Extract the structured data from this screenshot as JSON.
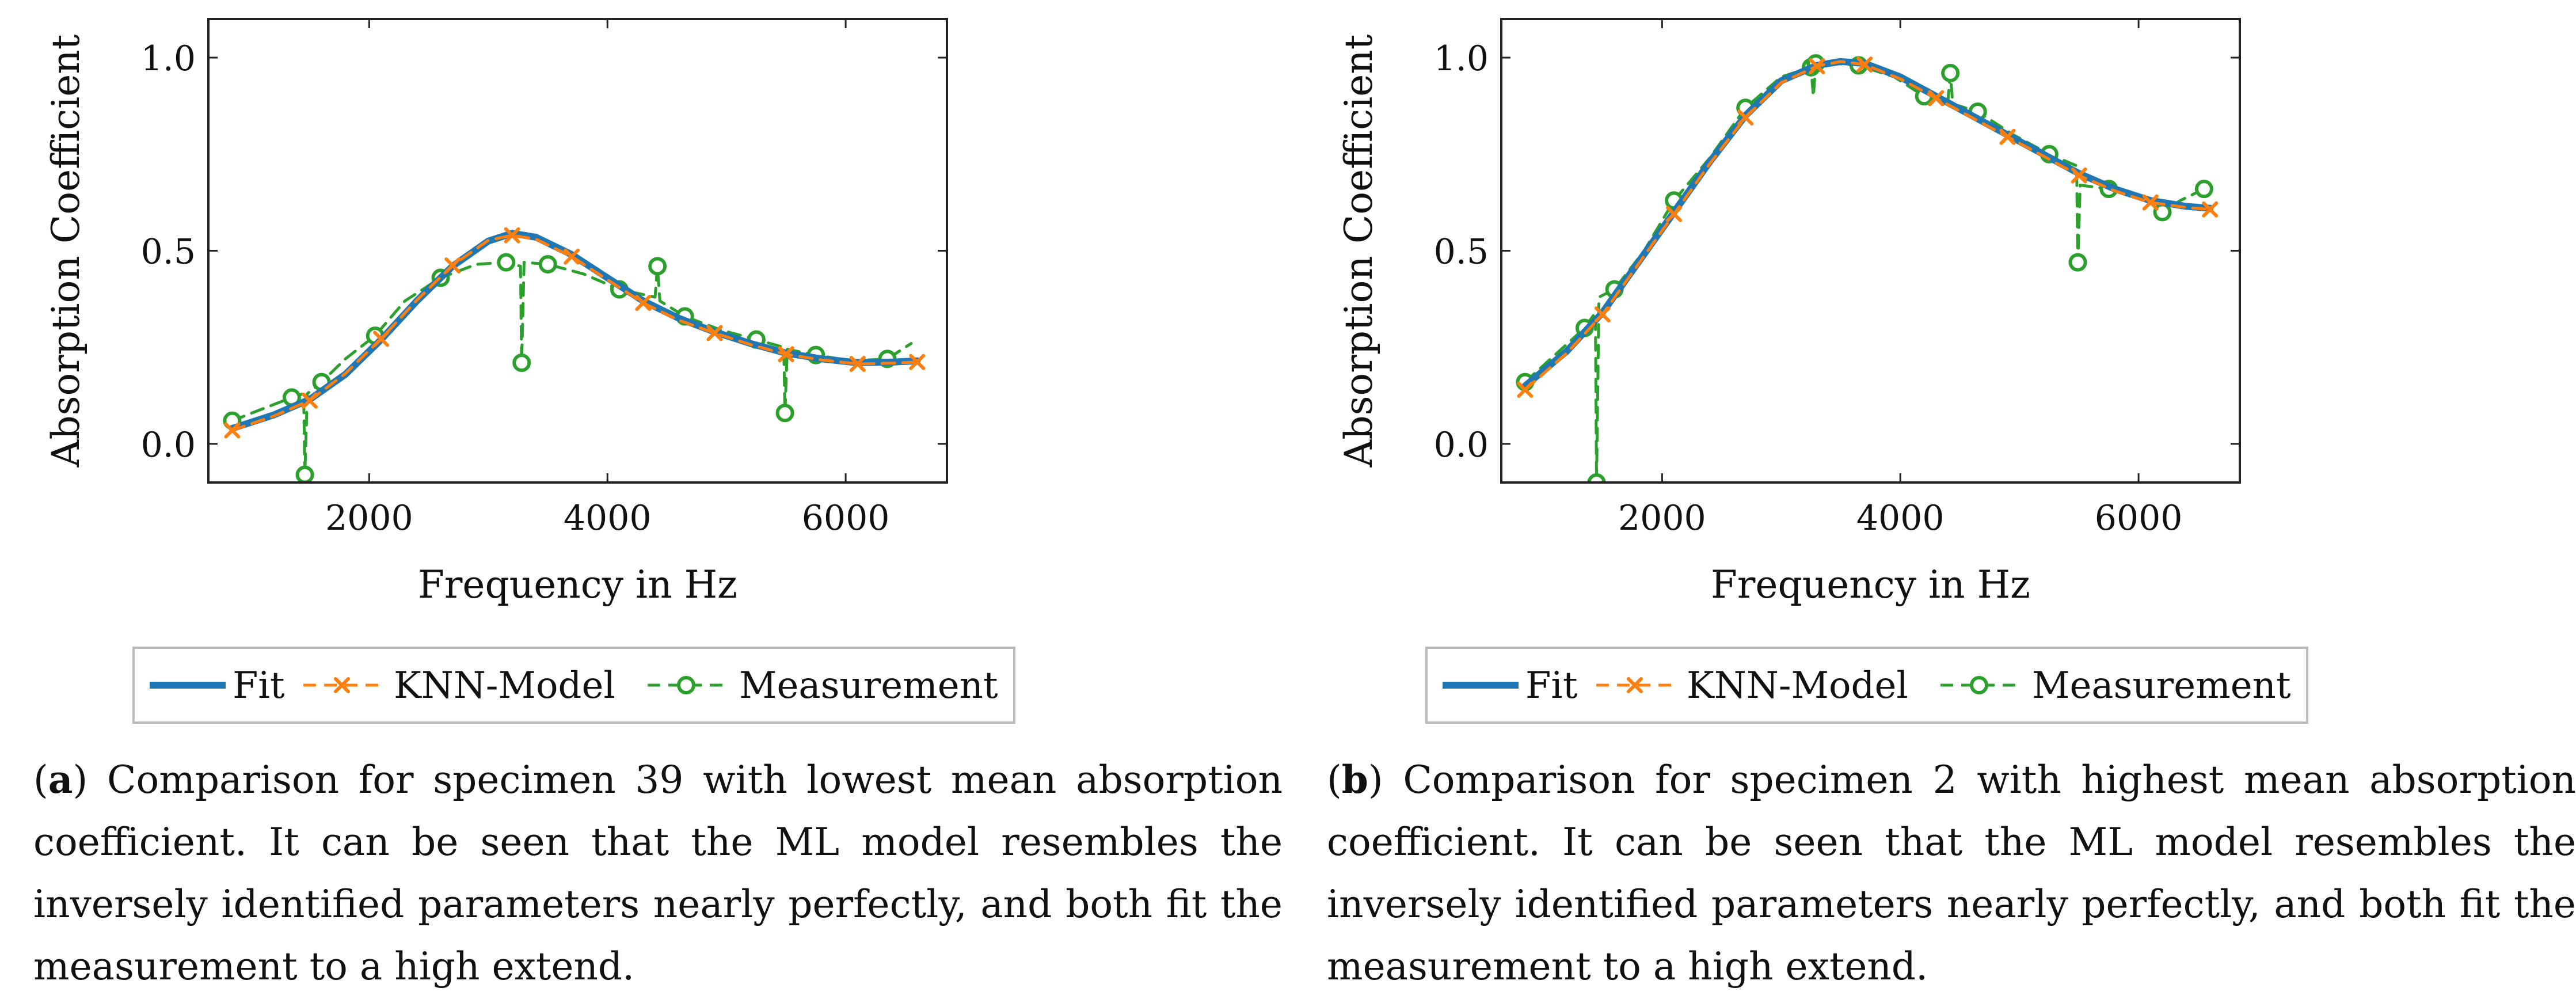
{
  "colors": {
    "fit": "#1f77b4",
    "knn": "#ff7f0e",
    "measurement": "#2ca02c",
    "axis": "#222222"
  },
  "legend": {
    "fit": "Fit",
    "knn": "KNN-Model",
    "measurement": "Measurement"
  },
  "chart_data": [
    {
      "type": "line",
      "title": "",
      "xlabel": "Frequency in Hz",
      "ylabel": "Absorption Coefficient",
      "xlim": [
        650,
        6850
      ],
      "ylim": [
        -0.1,
        1.1
      ],
      "xticks": [
        2000,
        4000,
        6000
      ],
      "yticks": [
        0.0,
        0.5,
        1.0
      ],
      "xtick_labels": [
        "2000",
        "4000",
        "6000"
      ],
      "ytick_labels": [
        "0.0",
        "0.5",
        "1.0"
      ],
      "grid": false,
      "legend_position": "below",
      "series": [
        {
          "name": "Fit",
          "x": [
            850,
            1200,
            1500,
            1800,
            2100,
            2400,
            2700,
            3000,
            3200,
            3400,
            3700,
            4000,
            4300,
            4600,
            4900,
            5200,
            5500,
            5800,
            6100,
            6400,
            6600
          ],
          "values": [
            0.04,
            0.075,
            0.115,
            0.18,
            0.27,
            0.37,
            0.46,
            0.525,
            0.545,
            0.535,
            0.49,
            0.43,
            0.37,
            0.325,
            0.29,
            0.26,
            0.235,
            0.22,
            0.21,
            0.212,
            0.215
          ]
        },
        {
          "name": "KNN-Model",
          "x": [
            850,
            1200,
            1500,
            1800,
            2100,
            2400,
            2700,
            3000,
            3200,
            3400,
            3700,
            4000,
            4300,
            4600,
            4900,
            5200,
            5500,
            5800,
            6100,
            6400,
            6600
          ],
          "values": [
            0.035,
            0.072,
            0.112,
            0.182,
            0.272,
            0.372,
            0.462,
            0.527,
            0.54,
            0.53,
            0.485,
            0.425,
            0.365,
            0.32,
            0.287,
            0.257,
            0.232,
            0.217,
            0.207,
            0.209,
            0.212
          ]
        },
        {
          "name": "Measurement",
          "x": [
            850,
            1100,
            1350,
            1450,
            1460,
            1480,
            1600,
            1800,
            2050,
            2300,
            2600,
            2900,
            3150,
            3270,
            3280,
            3300,
            3500,
            3800,
            4100,
            4400,
            4420,
            4440,
            4650,
            4950,
            5250,
            5480,
            5490,
            5510,
            5750,
            6050,
            6350,
            6550
          ],
          "values": [
            0.06,
            0.09,
            0.12,
            0.13,
            -0.08,
            0.13,
            0.16,
            0.22,
            0.28,
            0.37,
            0.43,
            0.465,
            0.47,
            0.46,
            0.21,
            0.47,
            0.465,
            0.44,
            0.4,
            0.38,
            0.46,
            0.37,
            0.33,
            0.295,
            0.27,
            0.25,
            0.08,
            0.245,
            0.23,
            0.215,
            0.22,
            0.26
          ]
        }
      ]
    },
    {
      "type": "line",
      "title": "",
      "xlabel": "Frequency in Hz",
      "ylabel": "Absorption Coefficient",
      "xlim": [
        650,
        6850
      ],
      "ylim": [
        -0.1,
        1.1
      ],
      "xticks": [
        2000,
        4000,
        6000
      ],
      "yticks": [
        0.0,
        0.5,
        1.0
      ],
      "xtick_labels": [
        "2000",
        "4000",
        "6000"
      ],
      "ytick_labels": [
        "0.0",
        "0.5",
        "1.0"
      ],
      "grid": false,
      "legend_position": "below",
      "series": [
        {
          "name": "Fit",
          "x": [
            850,
            1200,
            1500,
            1800,
            2100,
            2400,
            2700,
            3000,
            3300,
            3500,
            3700,
            4000,
            4300,
            4600,
            4900,
            5200,
            5500,
            5800,
            6100,
            6400,
            6600
          ],
          "values": [
            0.15,
            0.24,
            0.34,
            0.47,
            0.6,
            0.73,
            0.85,
            0.94,
            0.98,
            0.99,
            0.985,
            0.95,
            0.9,
            0.85,
            0.8,
            0.75,
            0.7,
            0.66,
            0.63,
            0.615,
            0.61
          ]
        },
        {
          "name": "KNN-Model",
          "x": [
            850,
            1200,
            1500,
            1800,
            2100,
            2400,
            2700,
            3000,
            3300,
            3500,
            3700,
            4000,
            4300,
            4600,
            4900,
            5200,
            5500,
            5800,
            6100,
            6400,
            6600
          ],
          "values": [
            0.14,
            0.235,
            0.335,
            0.465,
            0.595,
            0.725,
            0.845,
            0.935,
            0.978,
            0.99,
            0.982,
            0.945,
            0.895,
            0.845,
            0.795,
            0.745,
            0.695,
            0.655,
            0.625,
            0.612,
            0.607
          ]
        },
        {
          "name": "Measurement",
          "x": [
            850,
            1100,
            1350,
            1440,
            1450,
            1470,
            1600,
            1850,
            2100,
            2400,
            2700,
            3000,
            3250,
            3270,
            3290,
            3450,
            3650,
            3950,
            4200,
            4400,
            4420,
            4440,
            4650,
            4950,
            5250,
            5480,
            5490,
            5510,
            5750,
            6050,
            6200,
            6350,
            6550
          ],
          "values": [
            0.16,
            0.23,
            0.3,
            0.34,
            -0.1,
            0.38,
            0.4,
            0.5,
            0.63,
            0.74,
            0.87,
            0.95,
            0.975,
            0.9,
            0.985,
            0.985,
            0.98,
            0.95,
            0.9,
            0.89,
            0.96,
            0.88,
            0.86,
            0.8,
            0.75,
            0.72,
            0.47,
            0.67,
            0.66,
            0.64,
            0.6,
            0.63,
            0.66
          ]
        }
      ]
    }
  ],
  "captions": [
    {
      "label": "a",
      "text": "Comparison for specimen 39 with lowest mean absorption coefficient.  It can be seen that the ML model resembles the inversely identified parameters nearly perfectly, and both fit the measurement to a high extend."
    },
    {
      "label": "b",
      "text": "Comparison for specimen 2 with highest mean absorption coefficient.  It can be seen that the ML model resembles the inversely identified parameters nearly perfectly, and both fit the measurement to a high extend."
    }
  ]
}
